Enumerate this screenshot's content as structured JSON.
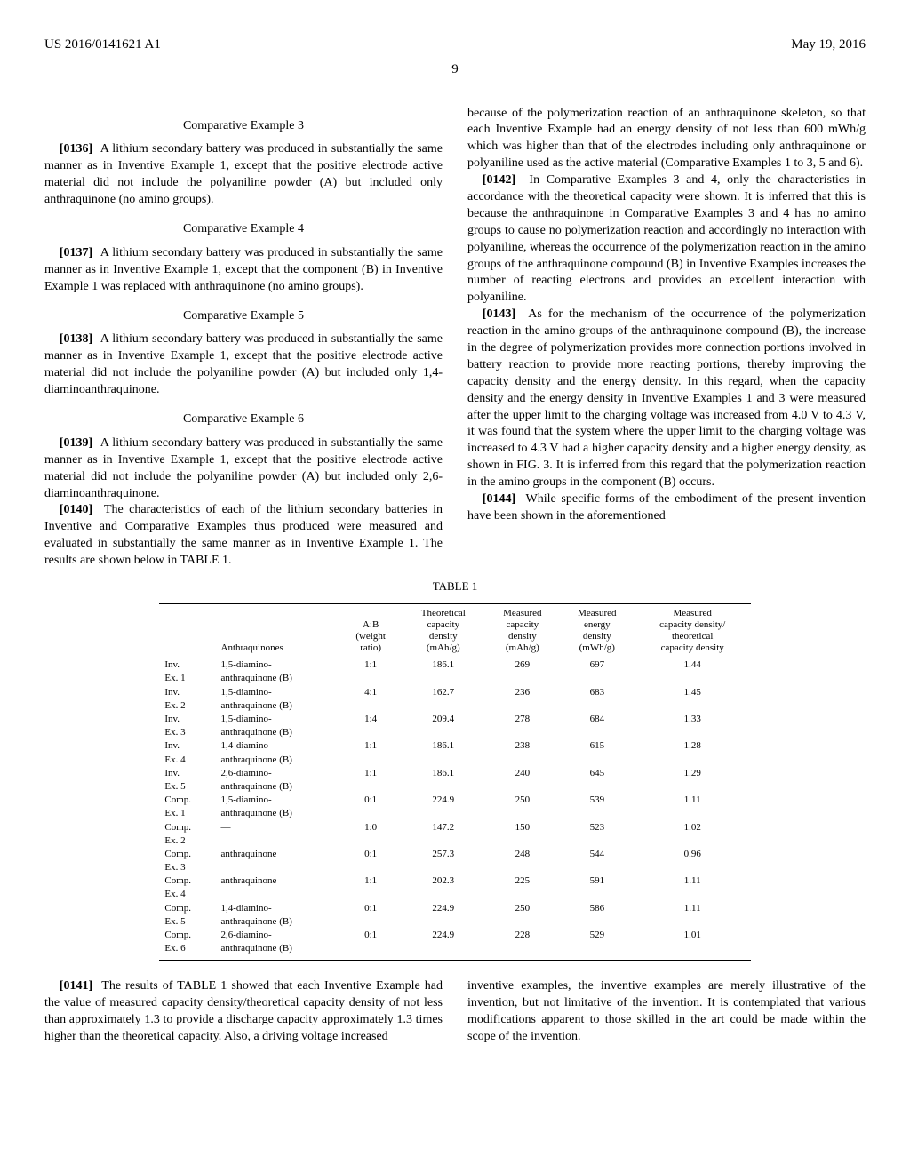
{
  "header": {
    "left": "US 2016/0141621 A1",
    "right": "May 19, 2016",
    "page": "9"
  },
  "left_col": {
    "ex3_heading": "Comparative Example 3",
    "p0136_num": "[0136]",
    "p0136": "A lithium secondary battery was produced in substantially the same manner as in Inventive Example 1, except that the positive electrode active material did not include the polyaniline powder (A) but included only anthraquinone (no amino groups).",
    "ex4_heading": "Comparative Example 4",
    "p0137_num": "[0137]",
    "p0137": "A lithium secondary battery was produced in substantially the same manner as in Inventive Example 1, except that the component (B) in Inventive Example 1 was replaced with anthraquinone (no amino groups).",
    "ex5_heading": "Comparative Example 5",
    "p0138_num": "[0138]",
    "p0138": "A lithium secondary battery was produced in substantially the same manner as in Inventive Example 1, except that the positive electrode active material did not include the polyaniline powder (A) but included only 1,4-diaminoanthraquinone.",
    "ex6_heading": "Comparative Example 6",
    "p0139_num": "[0139]",
    "p0139": "A lithium secondary battery was produced in substantially the same manner as in Inventive Example 1, except that the positive electrode active material did not include the polyaniline powder (A) but included only 2,6-diaminoanthraquinone.",
    "p0140_num": "[0140]",
    "p0140": "The characteristics of each of the lithium secondary batteries in Inventive and Comparative Examples thus produced were measured and evaluated in substantially the same manner as in Inventive Example 1. The results are shown below in TABLE 1."
  },
  "right_col": {
    "p_cont": "because of the polymerization reaction of an anthraquinone skeleton, so that each Inventive Example had an energy density of not less than 600 mWh/g which was higher than that of the electrodes including only anthraquinone or polyaniline used as the active material (Comparative Examples 1 to 3, 5 and 6).",
    "p0142_num": "[0142]",
    "p0142": "In Comparative Examples 3 and 4, only the characteristics in accordance with the theoretical capacity were shown. It is inferred that this is because the anthraquinone in Comparative Examples 3 and 4 has no amino groups to cause no polymerization reaction and accordingly no interaction with polyaniline, whereas the occurrence of the polymerization reaction in the amino groups of the anthraquinone compound (B) in Inventive Examples increases the number of reacting electrons and provides an excellent interaction with polyaniline.",
    "p0143_num": "[0143]",
    "p0143": "As for the mechanism of the occurrence of the polymerization reaction in the amino groups of the anthraquinone compound (B), the increase in the degree of polymerization provides more connection portions involved in battery reaction to provide more reacting portions, thereby improving the capacity density and the energy density. In this regard, when the capacity density and the energy density in Inventive Examples 1 and 3 were measured after the upper limit to the charging voltage was increased from 4.0 V to 4.3 V, it was found that the system where the upper limit to the charging voltage was increased to 4.3 V had a higher capacity density and a higher energy density, as shown in FIG. 3. It is inferred from this regard that the polymerization reaction in the amino groups in the component (B) occurs.",
    "p0144_num": "[0144]",
    "p0144": "While specific forms of the embodiment of the present invention have been shown in the aforementioned"
  },
  "table": {
    "caption": "TABLE 1",
    "columns": {
      "c0": "",
      "c1": "Anthraquinones",
      "c2": "A:B\n(weight\nratio)",
      "c3": "Theoretical\ncapacity\ndensity\n(mAh/g)",
      "c4": "Measured\ncapacity\ndensity\n(mAh/g)",
      "c5": "Measured\nenergy\ndensity\n(mWh/g)",
      "c6": "Measured\ncapacity density/\ntheoretical\ncapacity density"
    },
    "rows": [
      {
        "c0a": "Inv.",
        "c0b": "Ex. 1",
        "c1a": "1,5-diamino-",
        "c1b": "anthraquinone (B)",
        "c2": "1:1",
        "c3": "186.1",
        "c4": "269",
        "c5": "697",
        "c6": "1.44"
      },
      {
        "c0a": "Inv.",
        "c0b": "Ex. 2",
        "c1a": "1,5-diamino-",
        "c1b": "anthraquinone (B)",
        "c2": "4:1",
        "c3": "162.7",
        "c4": "236",
        "c5": "683",
        "c6": "1.45"
      },
      {
        "c0a": "Inv.",
        "c0b": "Ex. 3",
        "c1a": "1,5-diamino-",
        "c1b": "anthraquinone (B)",
        "c2": "1:4",
        "c3": "209.4",
        "c4": "278",
        "c5": "684",
        "c6": "1.33"
      },
      {
        "c0a": "Inv.",
        "c0b": "Ex. 4",
        "c1a": "1,4-diamino-",
        "c1b": "anthraquinone (B)",
        "c2": "1:1",
        "c3": "186.1",
        "c4": "238",
        "c5": "615",
        "c6": "1.28"
      },
      {
        "c0a": "Inv.",
        "c0b": "Ex. 5",
        "c1a": "2,6-diamino-",
        "c1b": "anthraquinone (B)",
        "c2": "1:1",
        "c3": "186.1",
        "c4": "240",
        "c5": "645",
        "c6": "1.29"
      },
      {
        "c0a": "Comp.",
        "c0b": "Ex. 1",
        "c1a": "1,5-diamino-",
        "c1b": "anthraquinone (B)",
        "c2": "0:1",
        "c3": "224.9",
        "c4": "250",
        "c5": "539",
        "c6": "1.11"
      },
      {
        "c0a": "Comp.",
        "c0b": "Ex. 2",
        "c1a": "—",
        "c1b": "",
        "c2": "1:0",
        "c3": "147.2",
        "c4": "150",
        "c5": "523",
        "c6": "1.02"
      },
      {
        "c0a": "Comp.",
        "c0b": "Ex. 3",
        "c1a": "anthraquinone",
        "c1b": "",
        "c2": "0:1",
        "c3": "257.3",
        "c4": "248",
        "c5": "544",
        "c6": "0.96"
      },
      {
        "c0a": "Comp.",
        "c0b": "Ex. 4",
        "c1a": "anthraquinone",
        "c1b": "",
        "c2": "1:1",
        "c3": "202.3",
        "c4": "225",
        "c5": "591",
        "c6": "1.11"
      },
      {
        "c0a": "Comp.",
        "c0b": "Ex. 5",
        "c1a": "1,4-diamino-",
        "c1b": "anthraquinone (B)",
        "c2": "0:1",
        "c3": "224.9",
        "c4": "250",
        "c5": "586",
        "c6": "1.11"
      },
      {
        "c0a": "Comp.",
        "c0b": "Ex. 6",
        "c1a": "2,6-diamino-",
        "c1b": "anthraquinone (B)",
        "c2": "0:1",
        "c3": "224.9",
        "c4": "228",
        "c5": "529",
        "c6": "1.01"
      }
    ]
  },
  "bottom": {
    "p0141_num": "[0141]",
    "p0141": "The results of TABLE 1 showed that each Inventive Example had the value of measured capacity density/theoretical capacity density of not less than approximately 1.3 to provide a discharge capacity approximately 1.3 times higher than the theoretical capacity. Also, a driving voltage increased",
    "right": "inventive examples, the inventive examples are merely illustrative of the invention, but not limitative of the invention. It is contemplated that various modifications apparent to those skilled in the art could be made within the scope of the invention."
  }
}
